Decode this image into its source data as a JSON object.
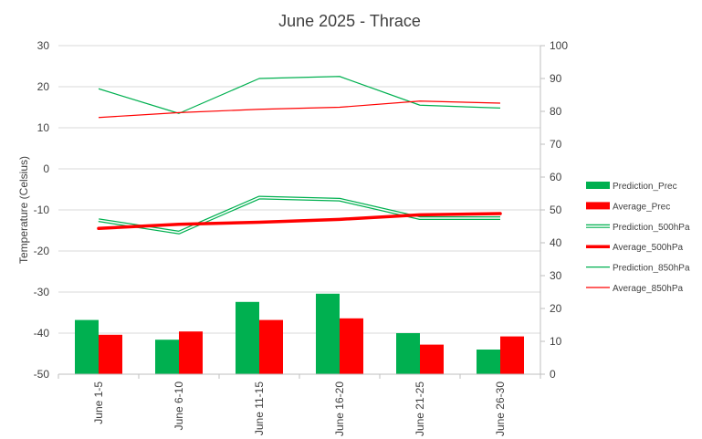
{
  "chart_data": {
    "type": "bar",
    "title": "June 2025 - Thrace",
    "ylabel": "Temperature (Celsius)",
    "ylim": [
      -50,
      30
    ],
    "y2lim": [
      0,
      100
    ],
    "yticks": [
      "30",
      "20",
      "10",
      "0",
      "-10",
      "-20",
      "-30",
      "-40",
      "-50"
    ],
    "y2ticks": [
      "100",
      "90",
      "80",
      "70",
      "60",
      "50",
      "40",
      "30",
      "20",
      "10",
      "0"
    ],
    "categories": [
      "June 1-5",
      "June 6-10",
      "June 11-15",
      "June 16-20",
      "June 21-25",
      "June 26-30"
    ],
    "grid": true,
    "legend_position": "right",
    "series": [
      {
        "name": "Prediction_Prec",
        "kind": "bar",
        "axis": "right",
        "color": "#00b050",
        "values": [
          16.5,
          10.5,
          22,
          24.5,
          12.5,
          7.5
        ]
      },
      {
        "name": "Average_Prec",
        "kind": "bar",
        "axis": "right",
        "color": "#ff0000",
        "values": [
          12,
          13,
          16.5,
          17,
          9,
          11.5
        ]
      },
      {
        "name": "Prediction_500hPa",
        "kind": "line-double",
        "axis": "left",
        "color": "#00b050",
        "values": [
          -12.5,
          -15.5,
          -7,
          -7.5,
          -12,
          -12
        ]
      },
      {
        "name": "Average_500hPa",
        "kind": "line-thick",
        "axis": "left",
        "color": "#ff0000",
        "values": [
          -14.5,
          -13.5,
          -13,
          -12.3,
          -11.2,
          -10.9
        ]
      },
      {
        "name": "Prediction_850hPa",
        "kind": "line",
        "axis": "left",
        "color": "#00b050",
        "values": [
          19.5,
          13.5,
          22,
          22.5,
          15.5,
          14.8
        ]
      },
      {
        "name": "Average_850hPa",
        "kind": "line",
        "axis": "left",
        "color": "#ff0000",
        "values": [
          12.5,
          13.7,
          14.5,
          15,
          16.5,
          16
        ]
      }
    ]
  }
}
